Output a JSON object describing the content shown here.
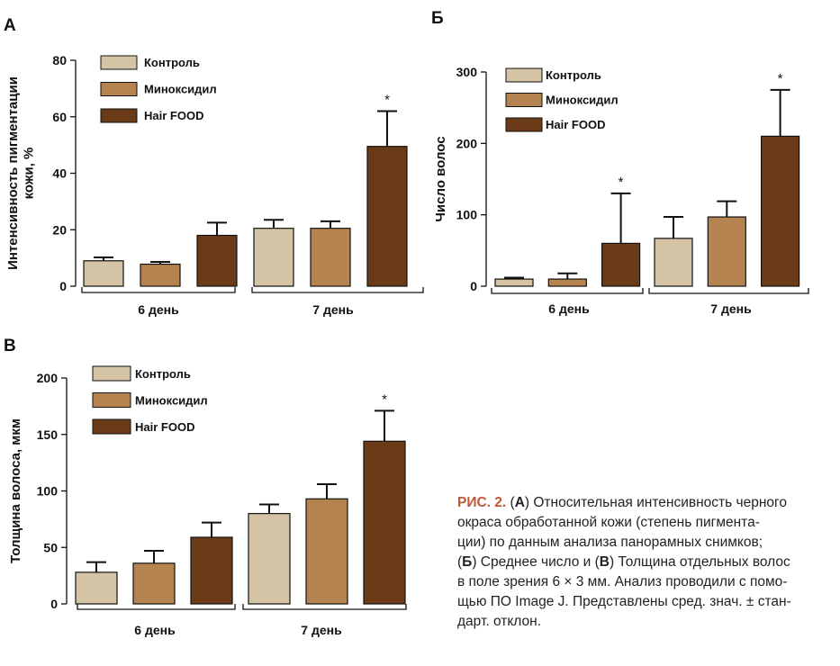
{
  "chart_data": [
    {
      "letter": "А",
      "type": "bar",
      "ylabel": "Интенсивность пигментации кожи, %",
      "ylim": [
        0,
        80
      ],
      "yticks": [
        0,
        20,
        40,
        60,
        80
      ],
      "groups": [
        "6 день",
        "7 день"
      ],
      "series": [
        {
          "name": "Контроль",
          "color": "#d4c3a5",
          "values": [
            9,
            20.5
          ],
          "errors": [
            1.2,
            3
          ]
        },
        {
          "name": "Миноксидил",
          "color": "#b5834f",
          "values": [
            7.8,
            20.5
          ],
          "errors": [
            0.8,
            2.5
          ]
        },
        {
          "name": "Hair FOOD",
          "color": "#6b3b18",
          "values": [
            18,
            49.5
          ],
          "errors": [
            4.5,
            12.5
          ]
        }
      ],
      "star": "*",
      "legend_position": "top-left"
    },
    {
      "letter": "Б",
      "type": "bar",
      "ylabel": "Число волос",
      "ylim": [
        0,
        300
      ],
      "yticks": [
        0,
        100,
        200,
        300
      ],
      "groups": [
        "6 день",
        "7 день"
      ],
      "series": [
        {
          "name": "Контроль",
          "color": "#d4c3a5",
          "values": [
            10,
            67
          ],
          "errors": [
            2,
            30
          ]
        },
        {
          "name": "Миноксидил",
          "color": "#b5834f",
          "values": [
            10,
            97
          ],
          "errors": [
            8,
            22
          ]
        },
        {
          "name": "Hair FOOD",
          "color": "#6b3b18",
          "values": [
            60,
            210
          ],
          "errors": [
            70,
            65
          ]
        }
      ],
      "star": "*",
      "legend_position": "top-left"
    },
    {
      "letter": "В",
      "type": "bar",
      "ylabel": "Толщина волоса, мкм",
      "ylim": [
        0,
        200
      ],
      "yticks": [
        0,
        50,
        100,
        150,
        200
      ],
      "groups": [
        "6 день",
        "7 день"
      ],
      "series": [
        {
          "name": "Контроль",
          "color": "#d4c3a5",
          "values": [
            28,
            80
          ],
          "errors": [
            9,
            8
          ]
        },
        {
          "name": "Миноксидил",
          "color": "#b5834f",
          "values": [
            36,
            93
          ],
          "errors": [
            11,
            13
          ]
        },
        {
          "name": "Hair FOOD",
          "color": "#6b3b18",
          "values": [
            59,
            144
          ],
          "errors": [
            13,
            27
          ]
        }
      ],
      "star": "*",
      "legend_position": "top-left"
    }
  ],
  "caption": {
    "head": "РИС. 2.",
    "lines": [
      [
        [
          "t",
          " ("
        ],
        [
          "b",
          "А"
        ],
        [
          "t",
          ") Относительная интенсивность черного"
        ]
      ],
      [
        [
          "t",
          "окраса обработанной кожи (степень пигмента-"
        ]
      ],
      [
        [
          "t",
          "ции) по данным анализа панорамных снимков;"
        ]
      ],
      [
        [
          "t",
          "("
        ],
        [
          "b",
          "Б"
        ],
        [
          "t",
          ") Среднее число  и ("
        ],
        [
          "b",
          "В"
        ],
        [
          "t",
          ") Толщина отдельных волос"
        ]
      ],
      [
        [
          "t",
          "в поле зрения 6 × 3 мм. Анализ проводили с помо-"
        ]
      ],
      [
        [
          "t",
          "щью ПО Image J. Представлены сред. знач. ± стан-"
        ]
      ],
      [
        [
          "t",
          "дарт. отклон."
        ]
      ]
    ]
  }
}
